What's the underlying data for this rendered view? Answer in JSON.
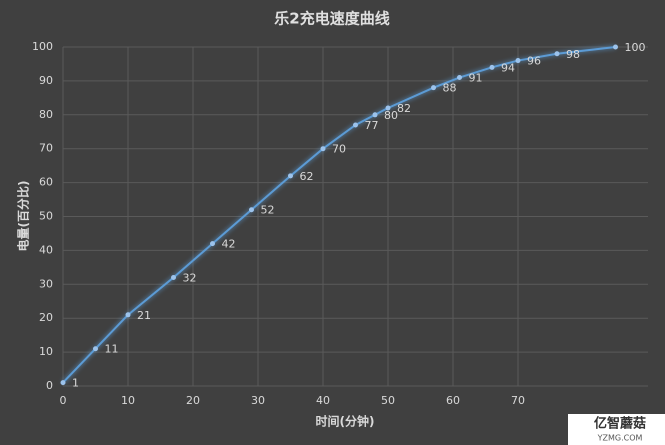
{
  "chart_data": {
    "type": "line",
    "title": "乐2充电速度曲线",
    "x_label": "时间(分钟)",
    "y_label": "电量(百分比)",
    "x": [
      0,
      5,
      10,
      17,
      23,
      29,
      35,
      40,
      45,
      48,
      50,
      57,
      61,
      66,
      70,
      76,
      85
    ],
    "series": [
      {
        "name": "电量",
        "color": "#5b9bd5",
        "values": [
          1,
          11,
          21,
          32,
          42,
          52,
          62,
          70,
          77,
          80,
          82,
          88,
          91,
          94,
          96,
          98,
          100
        ]
      }
    ],
    "xlim": [
      0,
      90
    ],
    "xticks": [
      0,
      10,
      20,
      30,
      40,
      50,
      60,
      70
    ],
    "ylim": [
      0,
      100
    ],
    "yticks": [
      0,
      10,
      20,
      30,
      40,
      50,
      60,
      70,
      80,
      90,
      100
    ],
    "grid": true,
    "watermark": "亿智蘑菇",
    "watermark_url": "YZMG.COM"
  }
}
